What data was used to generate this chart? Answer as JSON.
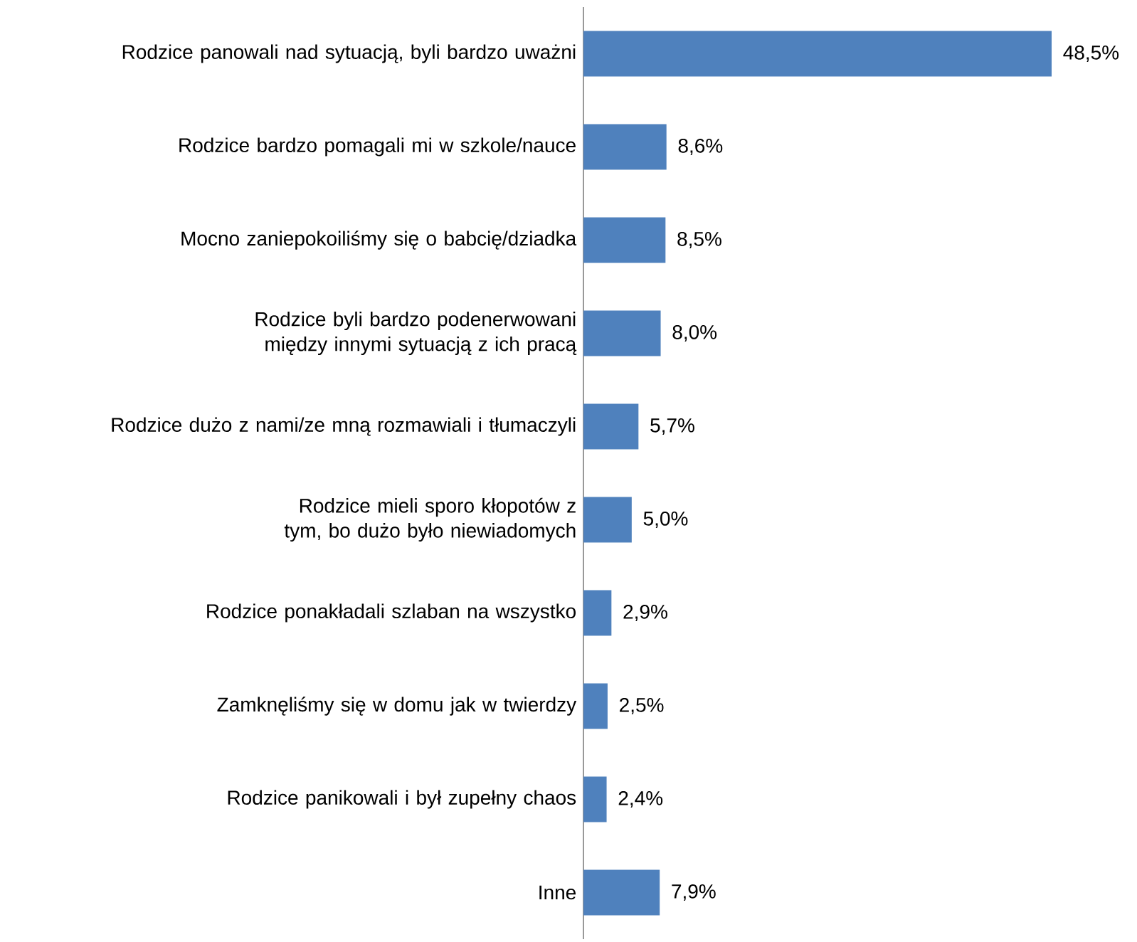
{
  "chart_data": {
    "type": "bar",
    "orientation": "horizontal",
    "categories": [
      "Rodzice panowali nad sytuacją, byli bardzo uważni",
      "Rodzice bardzo pomagali mi w szkole/nauce",
      "Mocno zaniepokoiliśmy się o babcię/dziadka",
      "Rodzice byli bardzo podenerwowani między innymi sytuacją z ich pracą",
      "Rodzice dużo z nami/ze mną rozmawiali i tłumaczyli",
      "Rodzice mieli sporo kłopotów z tym, bo dużo było niewiadomych",
      "Rodzice ponakładali szlaban na wszystko",
      "Zamknęliśmy się w domu jak w twierdzy",
      "Rodzice panikowali i był zupełny chaos",
      "Inne"
    ],
    "values": [
      48.5,
      8.6,
      8.5,
      8.0,
      5.7,
      5.0,
      2.9,
      2.5,
      2.4,
      7.9
    ],
    "value_labels": [
      "48,5%",
      "8,6%",
      "8,5%",
      "8,0%",
      "5,7%",
      "5,0%",
      "2,9%",
      "2,5%",
      "2,4%",
      "7,9%"
    ],
    "color": "#4f81bd"
  }
}
